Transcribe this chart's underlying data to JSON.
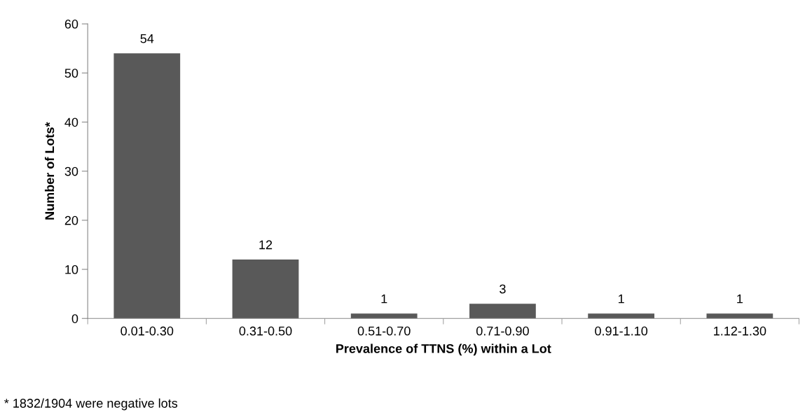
{
  "chart_data": {
    "type": "bar",
    "xlabel": "Prevalence of TTNS (%) within a Lot",
    "ylabel": "Number of Lots*",
    "categories": [
      "0.01-0.30",
      "0.31-0.50",
      "0.51-0.70",
      "0.71-0.90",
      "0.91-1.10",
      "1.12-1.30"
    ],
    "values": [
      54,
      12,
      1,
      3,
      1,
      1
    ],
    "color": "#595959",
    "ylim": [
      0,
      60
    ],
    "yticks": [
      0,
      10,
      20,
      30,
      40,
      50,
      60
    ],
    "data_labels": true,
    "grid": false,
    "legend": false,
    "annotations": [
      "* 1832/1904 were negative lots"
    ]
  }
}
